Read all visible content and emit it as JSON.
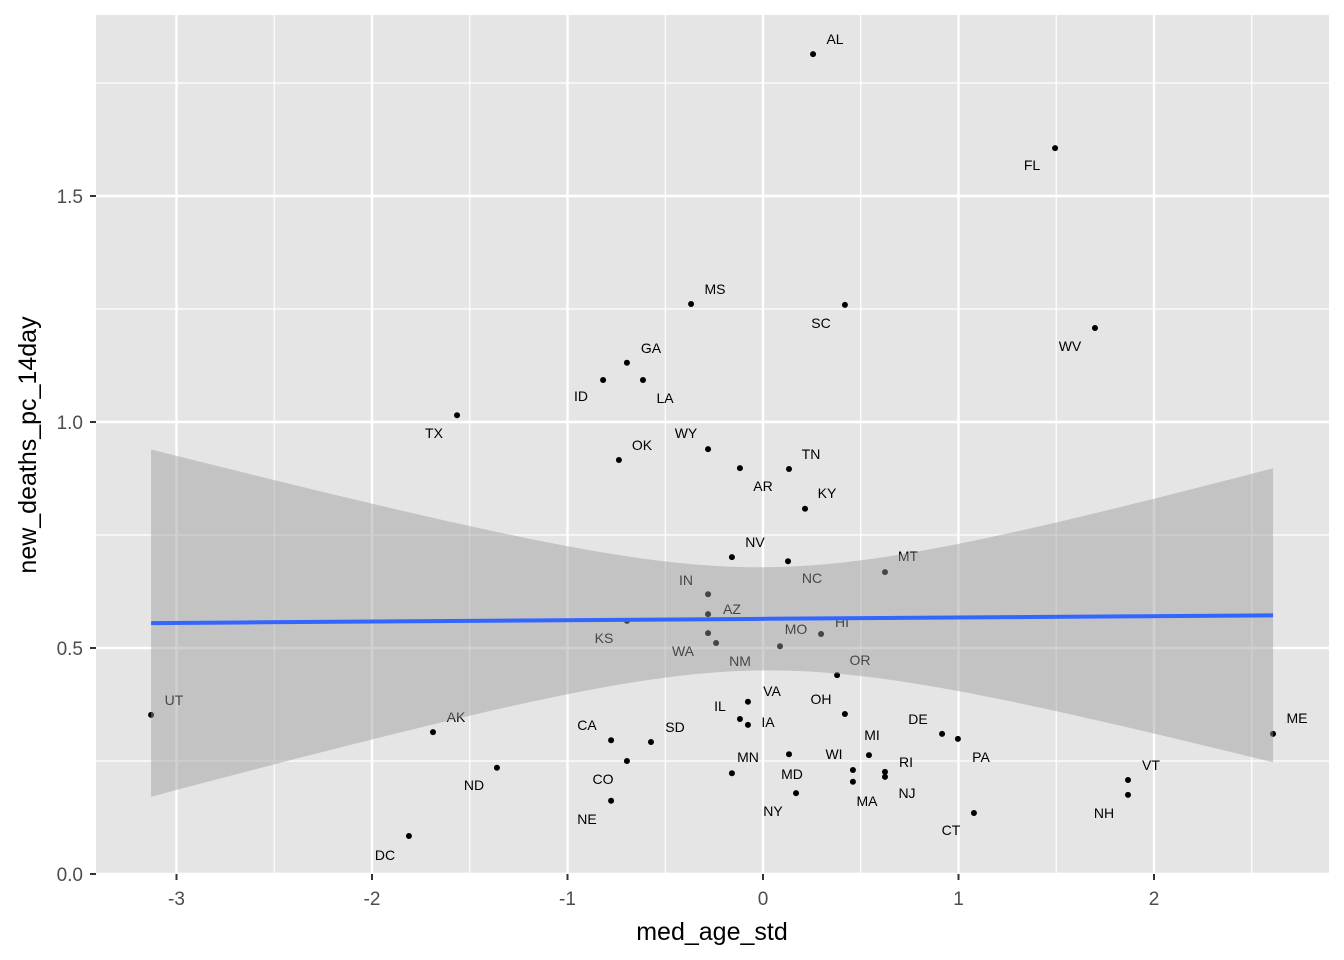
{
  "chart_data": {
    "type": "scatter",
    "title": "",
    "xlabel": "med_age_std",
    "ylabel": "new_deaths_pc_14day",
    "xlim": [
      -3.42,
      2.88
    ],
    "ylim": [
      -0.0,
      1.9
    ],
    "xticks": [
      -3,
      -2,
      -1,
      0,
      1,
      2
    ],
    "xtick_labels": [
      "-3",
      "-2",
      "-1",
      "0",
      "1",
      "2"
    ],
    "yticks": [
      0,
      0.5,
      1.0,
      1.5
    ],
    "ytick_labels": [
      "0.0",
      "0.5",
      "1.0",
      "1.5"
    ],
    "grid": true,
    "colors": {
      "panel": "#e5e5e5",
      "grid": "#ffffff",
      "point": "#000000",
      "line": "#3366ff",
      "ribbon": "#999999"
    },
    "points": [
      {
        "label": "AL",
        "x": 0.256,
        "y": 1.814
      },
      {
        "label": "FL",
        "x": 1.494,
        "y": 1.606
      },
      {
        "label": "MS",
        "x": -0.368,
        "y": 1.261
      },
      {
        "label": "SC",
        "x": 0.419,
        "y": 1.259
      },
      {
        "label": "WV",
        "x": 1.698,
        "y": 1.208
      },
      {
        "label": "GA",
        "x": -0.696,
        "y": 1.131
      },
      {
        "label": "ID",
        "x": -0.818,
        "y": 1.093
      },
      {
        "label": "LA",
        "x": -0.614,
        "y": 1.093
      },
      {
        "label": "TX",
        "x": -1.565,
        "y": 1.015
      },
      {
        "label": "WY",
        "x": -0.281,
        "y": 0.94
      },
      {
        "label": "OK",
        "x": -0.737,
        "y": 0.916
      },
      {
        "label": "AR",
        "x": -0.118,
        "y": 0.898
      },
      {
        "label": "TN",
        "x": 0.133,
        "y": 0.896
      },
      {
        "label": "KY",
        "x": 0.215,
        "y": 0.808
      },
      {
        "label": "NV",
        "x": -0.159,
        "y": 0.701
      },
      {
        "label": "NC",
        "x": 0.128,
        "y": 0.692
      },
      {
        "label": "MT",
        "x": 0.624,
        "y": 0.668
      },
      {
        "label": "IN",
        "x": -0.281,
        "y": 0.619
      },
      {
        "label": "AZ",
        "x": -0.281,
        "y": 0.575
      },
      {
        "label": "KS",
        "x": -0.696,
        "y": 0.56
      },
      {
        "label": "WA",
        "x": -0.281,
        "y": 0.533
      },
      {
        "label": "NM",
        "x": -0.24,
        "y": 0.511
      },
      {
        "label": "HI",
        "x": 0.297,
        "y": 0.531
      },
      {
        "label": "MO",
        "x": 0.087,
        "y": 0.504
      },
      {
        "label": "OR",
        "x": 0.379,
        "y": 0.44
      },
      {
        "label": "UT",
        "x": -3.13,
        "y": 0.352
      },
      {
        "label": "VA",
        "x": -0.077,
        "y": 0.381
      },
      {
        "label": "OH",
        "x": 0.419,
        "y": 0.354
      },
      {
        "label": "IL",
        "x": -0.118,
        "y": 0.343
      },
      {
        "label": "IA",
        "x": -0.077,
        "y": 0.33
      },
      {
        "label": "AK",
        "x": -1.688,
        "y": 0.314
      },
      {
        "label": "DE",
        "x": 0.916,
        "y": 0.31
      },
      {
        "label": "PA",
        "x": 0.997,
        "y": 0.299
      },
      {
        "label": "ME",
        "x": 2.609,
        "y": 0.31
      },
      {
        "label": "CA",
        "x": -0.777,
        "y": 0.296
      },
      {
        "label": "SD",
        "x": -0.573,
        "y": 0.292
      },
      {
        "label": "MN",
        "x": -0.159,
        "y": 0.223
      },
      {
        "label": "MD",
        "x": 0.133,
        "y": 0.265
      },
      {
        "label": "NY",
        "x": 0.169,
        "y": 0.179
      },
      {
        "label": "WI",
        "x": 0.46,
        "y": 0.23
      },
      {
        "label": "MA",
        "x": 0.46,
        "y": 0.204
      },
      {
        "label": "MI",
        "x": 0.542,
        "y": 0.263
      },
      {
        "label": "RI",
        "x": 0.624,
        "y": 0.226
      },
      {
        "label": "NJ",
        "x": 0.624,
        "y": 0.215
      },
      {
        "label": "CO",
        "x": -0.696,
        "y": 0.25
      },
      {
        "label": "ND",
        "x": -1.361,
        "y": 0.235
      },
      {
        "label": "VT",
        "x": 1.867,
        "y": 0.208
      },
      {
        "label": "NH",
        "x": 1.867,
        "y": 0.175
      },
      {
        "label": "NE",
        "x": -0.777,
        "y": 0.162
      },
      {
        "label": "CT",
        "x": 1.079,
        "y": 0.135
      },
      {
        "label": "DC",
        "x": -1.811,
        "y": 0.084
      }
    ],
    "smooth": {
      "method": "lm",
      "intercept": 0.5645,
      "slope": 0.003,
      "x_range": [
        -3.13,
        2.609
      ],
      "ci_halfwidth_min": 0.114,
      "ci_center_x": 0.005,
      "ci_growth": 0.117
    }
  }
}
